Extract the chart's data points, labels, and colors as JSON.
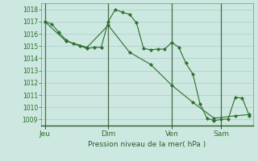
{
  "background_color": "#cce8e0",
  "grid_color": "#aacccc",
  "line_color": "#2d6e2d",
  "marker_color": "#2d6e2d",
  "xlabel": "Pression niveau de la mer( hPa )",
  "ylim": [
    1008.5,
    1018.5
  ],
  "yticks": [
    1009,
    1010,
    1011,
    1012,
    1013,
    1014,
    1015,
    1016,
    1017,
    1018
  ],
  "xtick_labels": [
    "Jeu",
    "Dim",
    "Ven",
    "Sam"
  ],
  "xtick_positions": [
    0,
    9,
    18,
    25
  ],
  "total_points": 30,
  "series1_x": [
    0,
    1,
    2,
    3,
    4,
    5,
    6,
    7,
    8,
    9,
    10,
    11,
    12,
    13,
    14,
    15,
    16,
    17,
    18,
    19,
    20,
    21,
    22,
    23,
    24,
    25,
    26,
    27,
    28,
    29
  ],
  "series1_y": [
    1017.0,
    1016.8,
    1016.1,
    1015.5,
    1015.2,
    1015.0,
    1014.8,
    1014.9,
    1014.9,
    1017.0,
    1018.0,
    1017.75,
    1017.6,
    1016.9,
    1014.8,
    1014.7,
    1014.75,
    1014.75,
    1015.3,
    1014.9,
    1013.6,
    1012.7,
    1010.3,
    1009.1,
    1008.9,
    1009.0,
    1009.05,
    1010.8,
    1010.75,
    1009.3
  ],
  "series2_x": [
    0,
    3,
    6,
    9,
    12,
    15,
    18,
    21,
    24,
    27,
    29
  ],
  "series2_y": [
    1017.0,
    1015.4,
    1014.9,
    1016.7,
    1014.5,
    1013.5,
    1011.8,
    1010.4,
    1009.1,
    1009.3,
    1009.4
  ],
  "vline_positions": [
    0,
    9,
    18,
    25
  ],
  "vline_color": "#4a6a4a"
}
